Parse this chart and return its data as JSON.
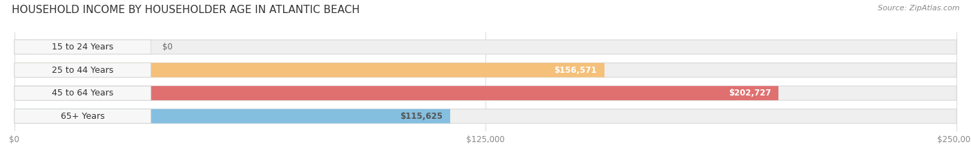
{
  "title": "HOUSEHOLD INCOME BY HOUSEHOLDER AGE IN ATLANTIC BEACH",
  "source": "Source: ZipAtlas.com",
  "categories": [
    "15 to 24 Years",
    "25 to 44 Years",
    "45 to 64 Years",
    "65+ Years"
  ],
  "values": [
    0,
    156571,
    202727,
    115625
  ],
  "max_value": 250000,
  "bar_colors": [
    "#f5a0b0",
    "#f5c07a",
    "#e07070",
    "#85bfe0"
  ],
  "bar_bg_color": "#efefef",
  "value_labels": [
    "$0",
    "$156,571",
    "$202,727",
    "$115,625"
  ],
  "value_label_colors": [
    "#777777",
    "#ffffff",
    "#ffffff",
    "#555555"
  ],
  "xtick_labels": [
    "$0",
    "$125,000",
    "$250,000"
  ],
  "xtick_values": [
    0,
    125000,
    250000
  ],
  "title_fontsize": 11,
  "source_fontsize": 8,
  "label_fontsize": 9,
  "value_fontsize": 8.5,
  "background_color": "#ffffff",
  "bar_height": 0.62,
  "grid_color": "#dddddd",
  "label_bg_color": "#f8f8f8"
}
